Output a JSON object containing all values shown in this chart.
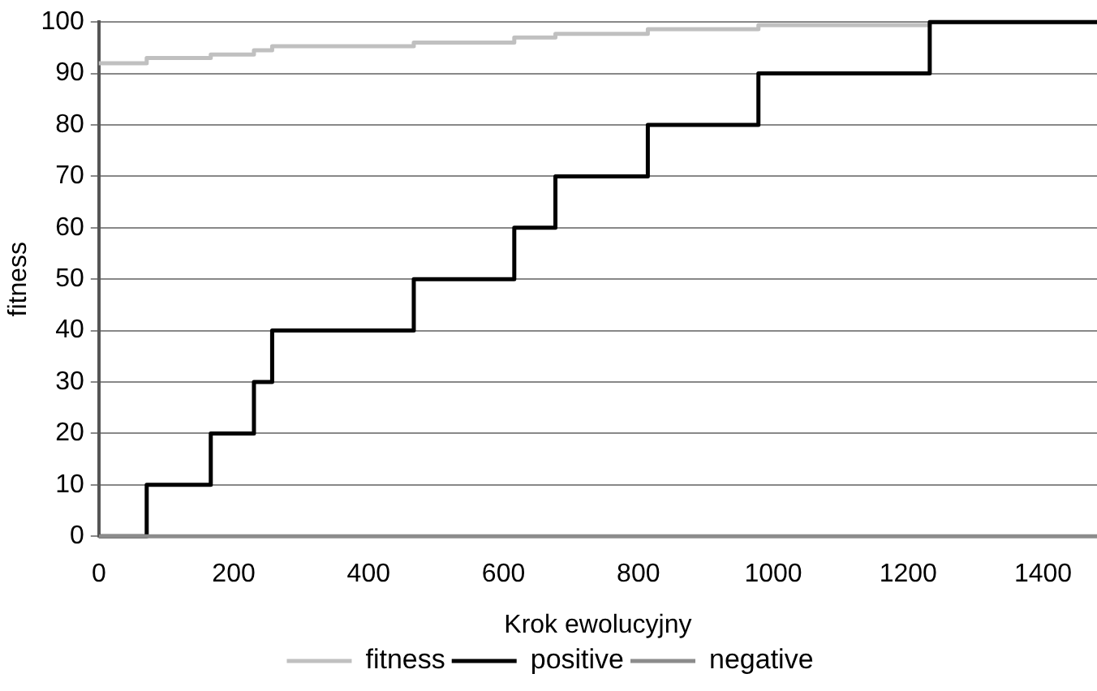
{
  "chart_data": {
    "type": "step",
    "xlabel": "Krok ewolucyjny",
    "ylabel": "fitness",
    "x": [
      0,
      71,
      166,
      230,
      257,
      467,
      616,
      677,
      814,
      978,
      1232,
      1480
    ],
    "series": [
      {
        "name": "fitness",
        "color": "#c0c0c0",
        "values": [
          92,
          93,
          93.7,
          94.5,
          95.3,
          96,
          97,
          97.7,
          98.6,
          99.4,
          100,
          100
        ]
      },
      {
        "name": "positive",
        "color": "#000000",
        "values": [
          0,
          10,
          20,
          30,
          40,
          50,
          60,
          70,
          80,
          90,
          100,
          100
        ]
      },
      {
        "name": "negative",
        "color": "#8c8c8c",
        "values": [
          0,
          0,
          0,
          0,
          0,
          0,
          0,
          0,
          0,
          0,
          0,
          0
        ]
      }
    ],
    "xlim": [
      0,
      1480
    ],
    "ylim": [
      0,
      100
    ],
    "xticks": [
      0,
      200,
      400,
      600,
      800,
      1000,
      1200,
      1400
    ],
    "yticks": [
      0,
      10,
      20,
      30,
      40,
      50,
      60,
      70,
      80,
      90,
      100
    ],
    "grid": "y",
    "legend": "bottom",
    "marker": "none"
  }
}
